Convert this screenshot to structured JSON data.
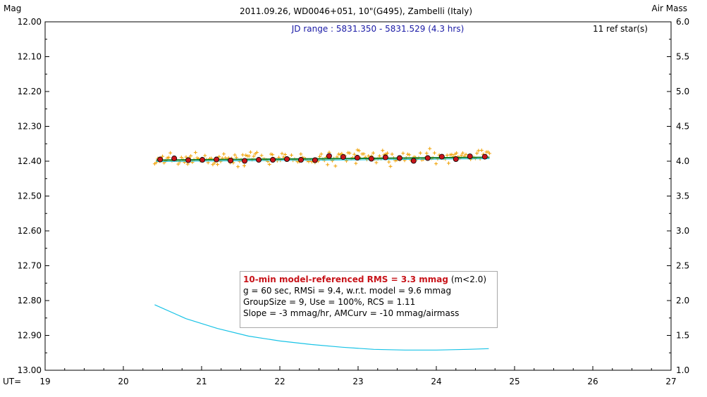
{
  "chart_data": {
    "type": "scatter",
    "title": "2011.09.26, WD0046+051, 10\"(G495), Zambelli (Italy)",
    "subtitle": "JD range : 5831.350 - 5831.529 (4.3 hrs)",
    "ref_stars": "11 ref star(s)",
    "y_left_label": "Mag",
    "y_right_label": "Air Mass",
    "x_label": "UT=",
    "x_range": [
      19,
      27
    ],
    "x_ticks": [
      "19",
      "20",
      "21",
      "22",
      "23",
      "24",
      "25",
      "26",
      "27"
    ],
    "y_left_range": [
      12.0,
      13.0
    ],
    "y_left_inverted": true,
    "y_left_ticks": [
      "12.00",
      "12.10",
      "12.20",
      "12.30",
      "12.40",
      "12.50",
      "12.60",
      "12.70",
      "12.80",
      "12.90",
      "13.00"
    ],
    "y_right_range": [
      1.0,
      6.0
    ],
    "y_right_ticks": [
      "6.0",
      "5.5",
      "5.0",
      "4.5",
      "4.0",
      "3.5",
      "3.0",
      "2.5",
      "2.0",
      "1.5",
      "1.0"
    ],
    "grid": false,
    "series": [
      {
        "kind": "group-averages",
        "color": "#c8141a",
        "x": [
          20.47,
          20.65,
          20.83,
          21.01,
          21.19,
          21.37,
          21.55,
          21.73,
          21.91,
          22.09,
          22.27,
          22.45,
          22.63,
          22.81,
          22.99,
          23.17,
          23.35,
          23.53,
          23.71,
          23.89,
          24.07,
          24.25,
          24.43,
          24.62
        ],
        "y": [
          12.395,
          12.392,
          12.397,
          12.396,
          12.395,
          12.398,
          12.399,
          12.396,
          12.396,
          12.394,
          12.396,
          12.397,
          12.385,
          12.388,
          12.39,
          12.393,
          12.389,
          12.391,
          12.399,
          12.391,
          12.387,
          12.394,
          12.386,
          12.387
        ]
      },
      {
        "kind": "model-fit",
        "color": "#108030",
        "x": [
          20.42,
          24.68
        ],
        "y": [
          12.397,
          12.389
        ]
      },
      {
        "kind": "air-mass",
        "color": "#19c3e6",
        "axis": "right",
        "x": [
          20.4,
          20.8,
          21.2,
          21.6,
          22.0,
          22.4,
          22.8,
          23.2,
          23.6,
          24.0,
          24.4,
          24.67
        ],
        "y": [
          1.94,
          1.74,
          1.6,
          1.49,
          1.42,
          1.37,
          1.33,
          1.3,
          1.29,
          1.29,
          1.3,
          1.31
        ]
      }
    ],
    "points": {
      "kind": "individual-measurements",
      "color": "#f0a000",
      "x_start": 20.4,
      "x_end": 24.68,
      "count": 214,
      "mean_y": 12.395,
      "scatter_sigma": 0.0094
    }
  },
  "stats": {
    "rms_title": "10-min model-referenced RMS = 3.3 mmag",
    "rms_suffix": " (m<2.0)",
    "line2": "g = 60 sec, RMSi = 9.4, w.r.t. model = 9.6 mmag",
    "line3": "GroupSize = 9, Use = 100%, RCS = 1.11",
    "line4": "Slope = -3 mmag/hr, AMCurv = -10 mmag/airmass"
  },
  "colors": {
    "frame": "#000000",
    "points": "#f0a000",
    "averages": "#c8141a",
    "model": "#108030",
    "airmass": "#19c3e6",
    "subtitle": "#1a1aa6"
  }
}
